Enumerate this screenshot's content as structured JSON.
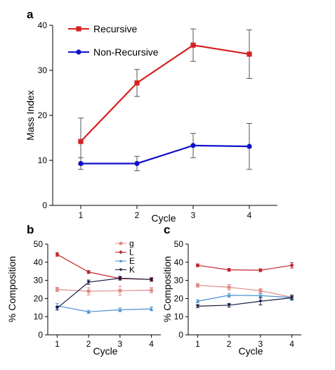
{
  "chart_data": [
    {
      "panel": "a",
      "type": "line",
      "x": [
        1,
        2,
        3,
        4
      ],
      "xlabel": "Cycle",
      "ylabel": "Mass Index",
      "xlim": [
        0.5,
        4.5
      ],
      "ylim": [
        0,
        40
      ],
      "xticks": [
        1,
        2,
        3,
        4
      ],
      "yticks": [
        0,
        10,
        20,
        30,
        40
      ],
      "grid": false,
      "legend": "top-left",
      "series": [
        {
          "name": "Recursive",
          "color": "#d62020",
          "marker": "square",
          "values": [
            14.2,
            27.2,
            35.6,
            33.6
          ],
          "errors": [
            5.2,
            3.0,
            3.6,
            5.4
          ]
        },
        {
          "name": "Non-Recursive",
          "color": "#1010cc",
          "marker": "circle",
          "values": [
            9.3,
            9.3,
            13.3,
            13.1
          ],
          "errors": [
            1.3,
            1.6,
            2.7,
            5.1
          ]
        }
      ]
    },
    {
      "panel": "b",
      "type": "line",
      "x": [
        1,
        2,
        3,
        4
      ],
      "xlabel": "Cycle",
      "ylabel": "% Composition",
      "xlim": [
        0.7,
        4.3
      ],
      "ylim": [
        0,
        50
      ],
      "xticks": [
        1,
        2,
        3,
        4
      ],
      "yticks": [
        0,
        10,
        20,
        30,
        40,
        50
      ],
      "grid": false,
      "legend": "top-right",
      "series": [
        {
          "name": "g",
          "color": "#e08c88",
          "marker": "square",
          "values": [
            25.0,
            24.0,
            24.3,
            24.6
          ],
          "errors": [
            1.2,
            2.0,
            2.5,
            1.5
          ]
        },
        {
          "name": "L",
          "color": "#c0262c",
          "marker": "circle",
          "values": [
            44.3,
            34.6,
            31.0,
            30.5
          ],
          "errors": [
            1.0,
            0.8,
            0.8,
            1.0
          ]
        },
        {
          "name": "E",
          "color": "#4a90d0",
          "marker": "triangle",
          "values": [
            16.0,
            12.7,
            13.8,
            14.3
          ],
          "errors": [
            1.2,
            0.8,
            1.0,
            1.0
          ]
        },
        {
          "name": "K",
          "color": "#141a40",
          "marker": "triangle-down",
          "values": [
            14.7,
            29.0,
            31.2,
            30.5
          ],
          "errors": [
            1.0,
            1.2,
            1.0,
            0.8
          ]
        }
      ]
    },
    {
      "panel": "c",
      "type": "line",
      "x": [
        1,
        2,
        3,
        4
      ],
      "xlabel": "Cycle",
      "ylabel": "% Composition",
      "xlim": [
        0.7,
        4.3
      ],
      "ylim": [
        0,
        50
      ],
      "xticks": [
        1,
        2,
        3,
        4
      ],
      "yticks": [
        0,
        10,
        20,
        30,
        40,
        50
      ],
      "grid": false,
      "series": [
        {
          "color": "#e08c88",
          "marker": "square",
          "values": [
            27.3,
            26.2,
            24.3,
            20.7
          ],
          "errors": [
            1.0,
            1.5,
            1.2,
            1.5
          ]
        },
        {
          "color": "#c0262c",
          "marker": "circle",
          "values": [
            38.3,
            35.8,
            35.6,
            38.3
          ],
          "errors": [
            0.8,
            0.8,
            0.8,
            1.5
          ]
        },
        {
          "color": "#4a90d0",
          "marker": "triangle",
          "values": [
            18.5,
            21.8,
            21.6,
            20.6
          ],
          "errors": [
            0.8,
            1.0,
            1.0,
            1.0
          ]
        },
        {
          "color": "#141a40",
          "marker": "triangle-down",
          "values": [
            15.8,
            16.3,
            18.5,
            20.4
          ],
          "errors": [
            0.8,
            1.0,
            2.0,
            1.2
          ]
        }
      ]
    }
  ]
}
